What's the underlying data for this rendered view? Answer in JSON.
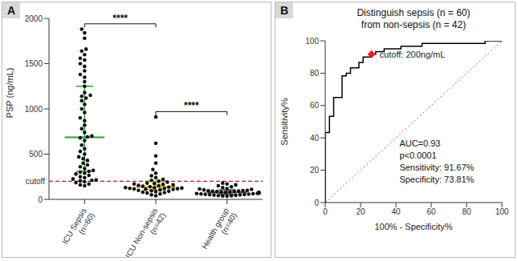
{
  "chart_data": [
    {
      "type": "scatter",
      "panel_label": "A",
      "y_label": "PSP (ng/mL)",
      "categories": [
        "ICU Sepsis\n(n=60)",
        "ICU Non-sepsis\n(n=42)",
        "Health group\n(n=40)"
      ],
      "values": [
        [
          1880,
          1840,
          1780,
          1660,
          1640,
          1600,
          1560,
          1540,
          1500,
          1470,
          1420,
          1380,
          1350,
          1300,
          1250,
          1180,
          1150,
          1140,
          1120,
          1090,
          1050,
          1000,
          960,
          900,
          870,
          820,
          780,
          740,
          700,
          690,
          680,
          650,
          600,
          560,
          530,
          500,
          470,
          450,
          430,
          400,
          380,
          360,
          340,
          320,
          310,
          300,
          290,
          280,
          265,
          250,
          240,
          225,
          215,
          210,
          205,
          195,
          185,
          170,
          160,
          150
        ],
        [
          910,
          620,
          480,
          400,
          330,
          290,
          260,
          240,
          220,
          210,
          200,
          190,
          180,
          175,
          170,
          165,
          160,
          155,
          150,
          145,
          140,
          135,
          130,
          128,
          125,
          122,
          120,
          118,
          115,
          112,
          110,
          105,
          100,
          95,
          90,
          85,
          80,
          75,
          70,
          60,
          50,
          40
        ],
        [
          180,
          170,
          160,
          150,
          140,
          130,
          120,
          115,
          110,
          105,
          100,
          98,
          95,
          92,
          90,
          88,
          85,
          82,
          80,
          78,
          76,
          74,
          72,
          70,
          68,
          66,
          64,
          62,
          60,
          58,
          56,
          54,
          52,
          50,
          48,
          45,
          42,
          40,
          38,
          35
        ]
      ],
      "color": "#111111",
      "marker": "circle",
      "summary": {
        "medians": [
          685,
          138,
          77
        ],
        "iqr": [
          [
            310,
            1250
          ],
          [
            105,
            200
          ],
          [
            56,
            105
          ]
        ],
        "colors": [
          "#2ca02c",
          "#d4b106",
          "#444444"
        ]
      },
      "ylim": [
        0,
        2000
      ],
      "yticks": [
        0,
        500,
        1000,
        1500,
        2000
      ],
      "cutoff_line": {
        "value": 200,
        "label": "cutoff",
        "color": "#b22222",
        "line_style": "dashed"
      },
      "significance": [
        {
          "between": [
            "ICU Sepsis\n(n=60)",
            "ICU Non-sepsis\n(n=42)"
          ],
          "label": "****"
        },
        {
          "between": [
            "ICU Non-sepsis\n(n=42)",
            "Health group\n(n=40)"
          ],
          "label": "****"
        }
      ]
    },
    {
      "type": "line",
      "panel_label": "B",
      "title": "Distinguish sepsis (n = 60)\nfrom non-sepsis (n = 42)",
      "x_label": "100% - Specificity%",
      "y_label": "Sensitivity%",
      "xlim": [
        0,
        100
      ],
      "ylim": [
        0,
        100
      ],
      "xticks": [
        0,
        20,
        40,
        60,
        80,
        100
      ],
      "yticks": [
        0,
        20,
        40,
        60,
        80,
        100
      ],
      "x": [
        0,
        0,
        2.38,
        2.38,
        4.76,
        4.76,
        9.52,
        9.52,
        11.9,
        11.9,
        14.29,
        14.29,
        19.05,
        19.05,
        21.43,
        21.43,
        26.19,
        26.19,
        28.57,
        28.57,
        33.33,
        33.33,
        42.86,
        42.86,
        54.76,
        54.76,
        90.48,
        90.48,
        100
      ],
      "values": [
        0,
        43.33,
        43.33,
        53.33,
        53.33,
        65,
        65,
        78.33,
        78.33,
        80,
        80,
        83.33,
        83.33,
        86.67,
        86.67,
        90,
        90,
        91.67,
        91.67,
        93.33,
        93.33,
        95,
        95,
        96.67,
        96.67,
        98.33,
        98.33,
        100,
        100
      ],
      "color": "#000000",
      "line_style": "solid",
      "diagonal": {
        "x": [
          0,
          100
        ],
        "values": [
          0,
          100
        ],
        "color": "#e05050",
        "line_style": "dotted"
      },
      "cutoff_point": {
        "x": 26.19,
        "y": 91.67,
        "label": "cutoff: 200ng/mL",
        "color": "#e8201c",
        "marker": "diamond"
      },
      "annotations": [
        "AUC=0.93",
        "p<0.0001",
        "Sensitivity: 91.67%",
        "Specificity: 73.81%"
      ]
    }
  ]
}
